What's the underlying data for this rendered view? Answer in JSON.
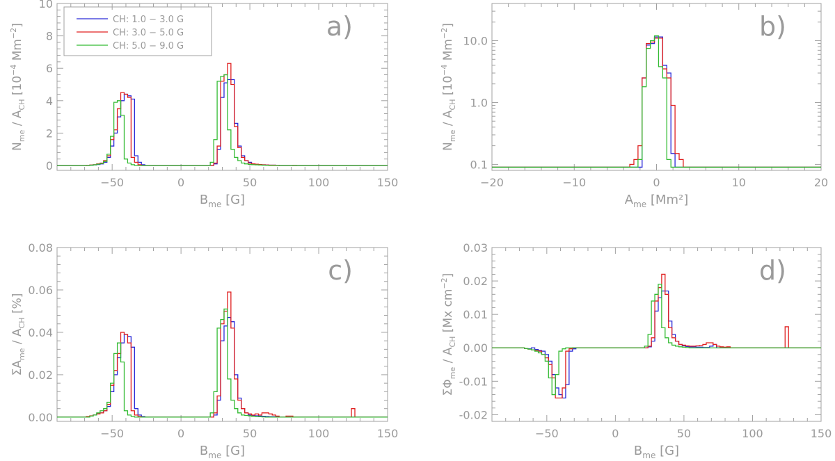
{
  "chart_data": [
    {
      "panel": "a)",
      "type": "line",
      "step": true,
      "xlim": [
        -90,
        150
      ],
      "ylim": [
        -0.3,
        10
      ],
      "xticks": [
        -50,
        0,
        50,
        100,
        150
      ],
      "yticks": [
        0,
        2,
        4,
        6,
        8,
        10
      ],
      "ytick_labels": [
        "0",
        "2",
        "4",
        "6",
        "8",
        "10"
      ],
      "xlabel_main": "B",
      "xlabel_sub": "me",
      "xlabel_unit": "[G]",
      "ylabel_main": "N",
      "ylabel_sub": "me",
      "ylabel_mid": "/ A",
      "ylabel_sub2": "CH",
      "ylabel_unit": "[10",
      "ylabel_unit_sup": "−4",
      "ylabel_unit_end": "Mm",
      "ylabel_unit_sup2": "−2",
      "ylabel_close": "]",
      "legend": [
        "CH: 1.0 − 3.0 G",
        "CH: 3.0 − 5.0 G",
        "CH: 5.0 − 9.0 G"
      ],
      "bin_width": 2.5,
      "x": [
        -70,
        -67.5,
        -65,
        -62.5,
        -60,
        -57.5,
        -55,
        -52.5,
        -50,
        -47.5,
        -45,
        -42.5,
        -40,
        -37.5,
        -35,
        -32.5,
        -30,
        -27.5,
        -25,
        -22.5,
        -20,
        20,
        22.5,
        25,
        27.5,
        30,
        32.5,
        35,
        37.5,
        40,
        42.5,
        45,
        47.5,
        50,
        52.5,
        55,
        57.5,
        60,
        62.5,
        65,
        67.5,
        70,
        72.5,
        75,
        77.5,
        80,
        82.5,
        85
      ],
      "series": [
        {
          "name": "CH: 1.0 − 3.0 G",
          "color": "#2a2ad8",
          "values": [
            0,
            0,
            0.02,
            0.04,
            0.06,
            0.1,
            0.2,
            0.5,
            1.2,
            2.0,
            3.0,
            4.0,
            4.4,
            4.3,
            4.1,
            0.6,
            0.2,
            0.05,
            0,
            0,
            0,
            0,
            0,
            0.1,
            1.0,
            4.2,
            5.1,
            5.3,
            5.3,
            2.6,
            1.2,
            0.6,
            0.3,
            0.2,
            0.1,
            0.08,
            0.06,
            0.04,
            0.03,
            0.02,
            0.02,
            0.01,
            0,
            0,
            0,
            0,
            0,
            0
          ]
        },
        {
          "name": "CH: 3.0 − 5.0 G",
          "color": "#e02020",
          "values": [
            0,
            0.01,
            0.03,
            0.05,
            0.1,
            0.15,
            0.3,
            0.6,
            1.6,
            2.2,
            3.5,
            4.5,
            4.4,
            4.2,
            0.5,
            0.2,
            0.05,
            0,
            0,
            0,
            0,
            0,
            0,
            0.15,
            1.2,
            5.2,
            5.6,
            6.3,
            5.0,
            2.4,
            1.1,
            0.5,
            0.3,
            0.15,
            0.1,
            0.08,
            0.06,
            0.04,
            0.03,
            0.02,
            0.02,
            0.01,
            0,
            0,
            0,
            0,
            0.01,
            0
          ]
        },
        {
          "name": "CH: 5.0 − 9.0 G",
          "color": "#33bb33",
          "values": [
            0,
            0,
            0.02,
            0.04,
            0.08,
            0.12,
            0.25,
            0.7,
            1.8,
            3.9,
            4.0,
            3.1,
            0.4,
            0.15,
            0.05,
            0,
            0,
            0,
            0,
            0,
            0,
            0,
            0.2,
            1.6,
            5.2,
            5.5,
            5.6,
            2.2,
            1.0,
            0.5,
            0.3,
            0.15,
            0.1,
            0.07,
            0.05,
            0.04,
            0.03,
            0.02,
            0.01,
            0,
            0,
            0,
            0,
            0,
            0,
            0,
            0,
            0
          ]
        }
      ]
    },
    {
      "panel": "b)",
      "type": "line",
      "step": true,
      "yscale": "log",
      "xlim": [
        -20,
        20
      ],
      "ylim": [
        0.08,
        40
      ],
      "xticks": [
        -20,
        -10,
        0,
        10,
        20
      ],
      "yticks": [
        0.1,
        1.0,
        10.0
      ],
      "ytick_labels": [
        "0.1",
        "1.0",
        "10.0"
      ],
      "xlabel_main": "A",
      "xlabel_sub": "me",
      "xlabel_unit": "[Mm²]",
      "ylabel_main": "N",
      "ylabel_sub": "me",
      "ylabel_mid": "/ A",
      "ylabel_sub2": "CH",
      "ylabel_unit": "[10",
      "ylabel_unit_sup": "−4",
      "ylabel_unit_end": "Mm",
      "ylabel_unit_sup2": "−2",
      "ylabel_close": "]",
      "x": [
        -4.5,
        -4.0,
        -3.5,
        -3.0,
        -2.5,
        -2.0,
        -1.5,
        -1.0,
        -0.5,
        0.0,
        0.5,
        1.0,
        1.5,
        2.0,
        2.5,
        3.0,
        3.5
      ],
      "series": [
        {
          "name": "CH: 1.0 − 3.0 G",
          "color": "#2a2ad8",
          "values": [
            0.09,
            0.09,
            0.09,
            0.09,
            0.09,
            0.09,
            2.5,
            8.5,
            9.0,
            11.5,
            11.5,
            4.0,
            3.0,
            0.15,
            0.09,
            0.09,
            0.09
          ]
        },
        {
          "name": "CH: 3.0 − 5.0 G",
          "color": "#e02020",
          "values": [
            0.09,
            0.09,
            0.09,
            0.1,
            0.12,
            0.2,
            2.5,
            9.0,
            9.5,
            11.0,
            11.0,
            3.5,
            2.5,
            0.9,
            0.15,
            0.12,
            0.09
          ]
        },
        {
          "name": "CH: 5.0 − 9.0 G",
          "color": "#33bb33",
          "values": [
            0.09,
            0.09,
            0.09,
            0.09,
            0.09,
            0.12,
            1.8,
            7.5,
            10.0,
            12.0,
            3.8,
            2.5,
            0.12,
            0.09,
            0.09,
            0.09,
            0.09
          ]
        }
      ]
    },
    {
      "panel": "c)",
      "type": "line",
      "step": true,
      "xlim": [
        -90,
        150
      ],
      "ylim": [
        -0.002,
        0.08
      ],
      "xticks": [
        -50,
        0,
        50,
        100,
        150
      ],
      "yticks": [
        0,
        0.02,
        0.04,
        0.06,
        0.08
      ],
      "ytick_labels": [
        "0.00",
        "0.02",
        "0.04",
        "0.06",
        "0.08"
      ],
      "xlabel_main": "B",
      "xlabel_sub": "me",
      "xlabel_unit": "[G]",
      "ylabel_main": "ΣA",
      "ylabel_sub": "me",
      "ylabel_mid": "/ A",
      "ylabel_sub2": "CH",
      "ylabel_unit": "[%]",
      "ylabel_unit_sup": "",
      "ylabel_unit_end": "",
      "ylabel_unit_sup2": "",
      "ylabel_close": "",
      "bin_width": 2.5,
      "x": [
        -70,
        -67.5,
        -65,
        -62.5,
        -60,
        -57.5,
        -55,
        -52.5,
        -50,
        -47.5,
        -45,
        -42.5,
        -40,
        -37.5,
        -35,
        -32.5,
        -30,
        -27.5,
        -25,
        -22.5,
        -20,
        20,
        22.5,
        25,
        27.5,
        30,
        32.5,
        35,
        37.5,
        40,
        42.5,
        45,
        47.5,
        50,
        52.5,
        55,
        57.5,
        60,
        62.5,
        65,
        67.5,
        70,
        72.5,
        75,
        77.5,
        80,
        82.5,
        85,
        122.5,
        125,
        127.5,
        130
      ],
      "series": [
        {
          "name": "CH: 1.0 − 3.0 G",
          "color": "#2a2ad8",
          "values": [
            0,
            0,
            0.0005,
            0.001,
            0.0015,
            0.002,
            0.003,
            0.005,
            0.012,
            0.02,
            0.028,
            0.035,
            0.039,
            0.038,
            0.033,
            0.004,
            0.001,
            0.0003,
            0,
            0,
            0,
            0,
            0,
            0.001,
            0.008,
            0.036,
            0.043,
            0.047,
            0.045,
            0.02,
            0.009,
            0.004,
            0.002,
            0.001,
            0.0008,
            0.0006,
            0.0005,
            0.0004,
            0.0003,
            0.0002,
            0.0002,
            0.0001,
            0,
            0,
            0,
            0,
            0,
            0,
            0,
            0,
            0,
            0
          ]
        },
        {
          "name": "CH: 3.0 − 5.0 G",
          "color": "#e02020",
          "values": [
            0,
            0.0003,
            0.0006,
            0.001,
            0.0015,
            0.002,
            0.003,
            0.006,
            0.015,
            0.022,
            0.03,
            0.04,
            0.039,
            0.035,
            0.003,
            0.001,
            0.0003,
            0,
            0,
            0,
            0,
            0,
            0,
            0.002,
            0.01,
            0.044,
            0.05,
            0.059,
            0.042,
            0.018,
            0.008,
            0.004,
            0.002,
            0.0015,
            0.001,
            0.0015,
            0.001,
            0.002,
            0.002,
            0.0015,
            0.001,
            0.0005,
            0,
            0,
            0.0005,
            0.0005,
            0,
            0,
            0,
            0.004,
            0,
            0
          ]
        },
        {
          "name": "CH: 5.0 − 9.0 G",
          "color": "#33bb33",
          "values": [
            0,
            0,
            0.0005,
            0.001,
            0.002,
            0.003,
            0.004,
            0.007,
            0.016,
            0.03,
            0.035,
            0.026,
            0.003,
            0.001,
            0.0003,
            0,
            0,
            0,
            0,
            0,
            0,
            0,
            0.002,
            0.012,
            0.042,
            0.046,
            0.051,
            0.018,
            0.008,
            0.004,
            0.002,
            0.001,
            0.0008,
            0.0006,
            0.0004,
            0.0003,
            0.0002,
            0.0001,
            0,
            0,
            0,
            0,
            0,
            0,
            0,
            0,
            0,
            0,
            0,
            0,
            0,
            0
          ]
        }
      ]
    },
    {
      "panel": "d)",
      "type": "line",
      "step": true,
      "xlim": [
        -90,
        150
      ],
      "ylim": [
        -0.022,
        0.03
      ],
      "xticks": [
        -50,
        0,
        50,
        100,
        150
      ],
      "yticks": [
        -0.02,
        -0.01,
        0,
        0.01,
        0.02,
        0.03
      ],
      "ytick_labels": [
        "-0.02",
        "-0.01",
        "0.00",
        "0.01",
        "0.02",
        "0.03"
      ],
      "xlabel_main": "B",
      "xlabel_sub": "me",
      "xlabel_unit": "[G]",
      "ylabel_main": "ΣΦ",
      "ylabel_sub": "me",
      "ylabel_mid": "/ A",
      "ylabel_sub2": "CH",
      "ylabel_unit": "[Mx cm",
      "ylabel_unit_sup": "−2",
      "ylabel_unit_end": "",
      "ylabel_unit_sup2": "",
      "ylabel_close": "]",
      "bin_width": 2.5,
      "x": [
        -70,
        -67.5,
        -65,
        -62.5,
        -60,
        -57.5,
        -55,
        -52.5,
        -50,
        -47.5,
        -45,
        -42.5,
        -40,
        -37.5,
        -35,
        -32.5,
        -30,
        -27.5,
        -25,
        -22.5,
        -20,
        20,
        22.5,
        25,
        27.5,
        30,
        32.5,
        35,
        37.5,
        40,
        42.5,
        45,
        47.5,
        50,
        52.5,
        55,
        57.5,
        60,
        62.5,
        65,
        67.5,
        70,
        72.5,
        75,
        77.5,
        80,
        82.5,
        85,
        122.5,
        125,
        127.5,
        130
      ],
      "series": [
        {
          "name": "CH: 1.0 − 3.0 G",
          "color": "#2a2ad8",
          "values": [
            0,
            0,
            -0.0002,
            -0.0003,
            0,
            -0.0005,
            -0.0008,
            -0.001,
            -0.002,
            -0.004,
            -0.008,
            -0.012,
            -0.014,
            -0.015,
            -0.011,
            -0.001,
            -0.0003,
            0,
            0,
            0,
            0,
            0,
            0,
            0.0003,
            0.002,
            0.011,
            0.015,
            0.017,
            0.017,
            0.008,
            0.004,
            0.002,
            0.001,
            0.0006,
            0.0004,
            0.0003,
            0.0003,
            0.0002,
            0.0002,
            0.0001,
            0.0001,
            0.0005,
            0.001,
            0,
            0,
            0,
            0,
            0,
            0,
            0,
            0,
            0
          ]
        },
        {
          "name": "CH: 3.0 − 5.0 G",
          "color": "#e02020",
          "values": [
            0,
            0,
            -0.0002,
            -0.0004,
            -0.0006,
            -0.0008,
            -0.001,
            -0.002,
            -0.003,
            -0.005,
            -0.009,
            -0.015,
            -0.015,
            -0.012,
            -0.001,
            -0.0003,
            0,
            0,
            0,
            0,
            0,
            0,
            0,
            0.0005,
            0.003,
            0.014,
            0.018,
            0.022,
            0.016,
            0.006,
            0.003,
            0.002,
            0.001,
            0.0008,
            0.0006,
            0.0005,
            0.0005,
            0.0006,
            0.0007,
            0.001,
            0.0015,
            0.0015,
            0.001,
            0.0005,
            0.0003,
            0.0002,
            0.0003,
            0,
            0,
            0.0063,
            0,
            0
          ]
        },
        {
          "name": "CH: 5.0 − 9.0 G",
          "color": "#33bb33",
          "values": [
            0,
            0,
            -0.0002,
            -0.0004,
            -0.0006,
            -0.001,
            -0.0015,
            -0.002,
            -0.004,
            -0.009,
            -0.014,
            -0.008,
            -0.001,
            -0.0003,
            0,
            0,
            0,
            0,
            0,
            0,
            0,
            0,
            0.0005,
            0.004,
            0.014,
            0.016,
            0.019,
            0.006,
            0.003,
            0.0015,
            0.0008,
            0.0005,
            0.0003,
            0.0002,
            0.0001,
            0,
            0,
            0,
            0,
            0,
            0,
            0,
            0,
            0,
            0,
            0,
            0,
            0,
            0,
            0,
            0,
            0
          ]
        }
      ]
    }
  ]
}
